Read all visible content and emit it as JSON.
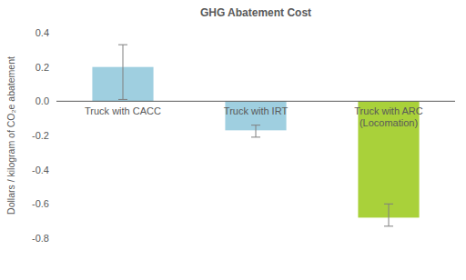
{
  "chart_data": {
    "type": "bar",
    "title": "GHG Abatement Cost",
    "y_label": "Dollars / kilogram of CO₂e abatement",
    "categories": [
      "Truck with CACC",
      "Truck with IRT",
      "Truck with ARC (Locomation)"
    ],
    "values": [
      0.2,
      -0.17,
      -0.68
    ],
    "errors_minus": [
      0.19,
      0.04,
      0.05
    ],
    "errors_plus": [
      0.13,
      0.03,
      0.08
    ],
    "colors": [
      "#9fcfe0",
      "#9fcfe0",
      "#a9d13a"
    ],
    "ylim": [
      -0.8,
      0.4
    ],
    "yticks": [
      -0.8,
      -0.6,
      -0.4,
      -0.2,
      {
        "value": 0,
        "label": "0.0"
      },
      0.2,
      0.4
    ],
    "grid": false
  }
}
